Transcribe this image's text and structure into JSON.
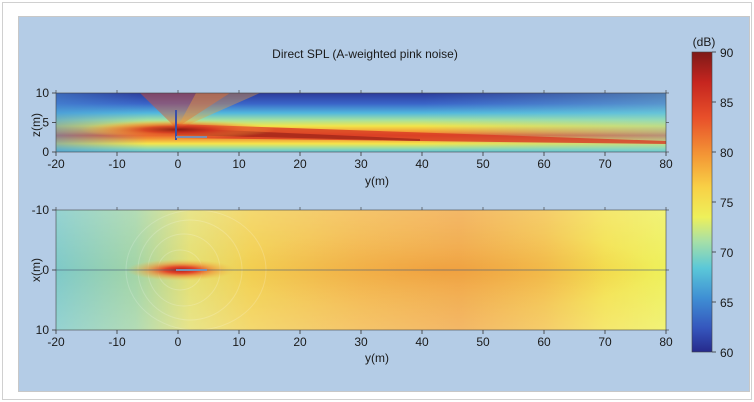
{
  "chart_data": [
    {
      "type": "heatmap",
      "title": "Direct SPL (A-weighted pink noise)",
      "xlabel": "y(m)",
      "ylabel": "z(m)",
      "xlim": [
        -20,
        80
      ],
      "ylim": [
        0,
        10
      ],
      "xticks": [
        "-20",
        "-10",
        "0",
        "10",
        "20",
        "30",
        "40",
        "50",
        "60",
        "70",
        "80"
      ],
      "yticks": [
        "0",
        "5",
        "10"
      ],
      "source_height_m": 2.6,
      "beam": "high-level beam near z≈2.5 m spreading toward +y"
    },
    {
      "type": "heatmap",
      "title": "",
      "xlabel": "y(m)",
      "ylabel": "x(m)",
      "xlim": [
        -20,
        80
      ],
      "ylim": [
        10,
        -10
      ],
      "xticks": [
        "-20",
        "-10",
        "0",
        "10",
        "20",
        "30",
        "40",
        "50",
        "60",
        "70",
        "80"
      ],
      "yticks": [
        "-10",
        "0",
        "10"
      ],
      "source_position_m": 0,
      "beam": "plan view, maximum near y≈45 m"
    }
  ],
  "colorbar": {
    "unit": "(dB)",
    "min": 60,
    "max": 90,
    "ticks": [
      "90",
      "85",
      "80",
      "75",
      "70",
      "65",
      "60"
    ],
    "colors": [
      "#262a8c",
      "#3a5fcd",
      "#46a0d8",
      "#5fd0cf",
      "#a6e0a0",
      "#f5ee4a",
      "#f8c040",
      "#f08a2e",
      "#e0422a",
      "#7e1a18"
    ]
  }
}
